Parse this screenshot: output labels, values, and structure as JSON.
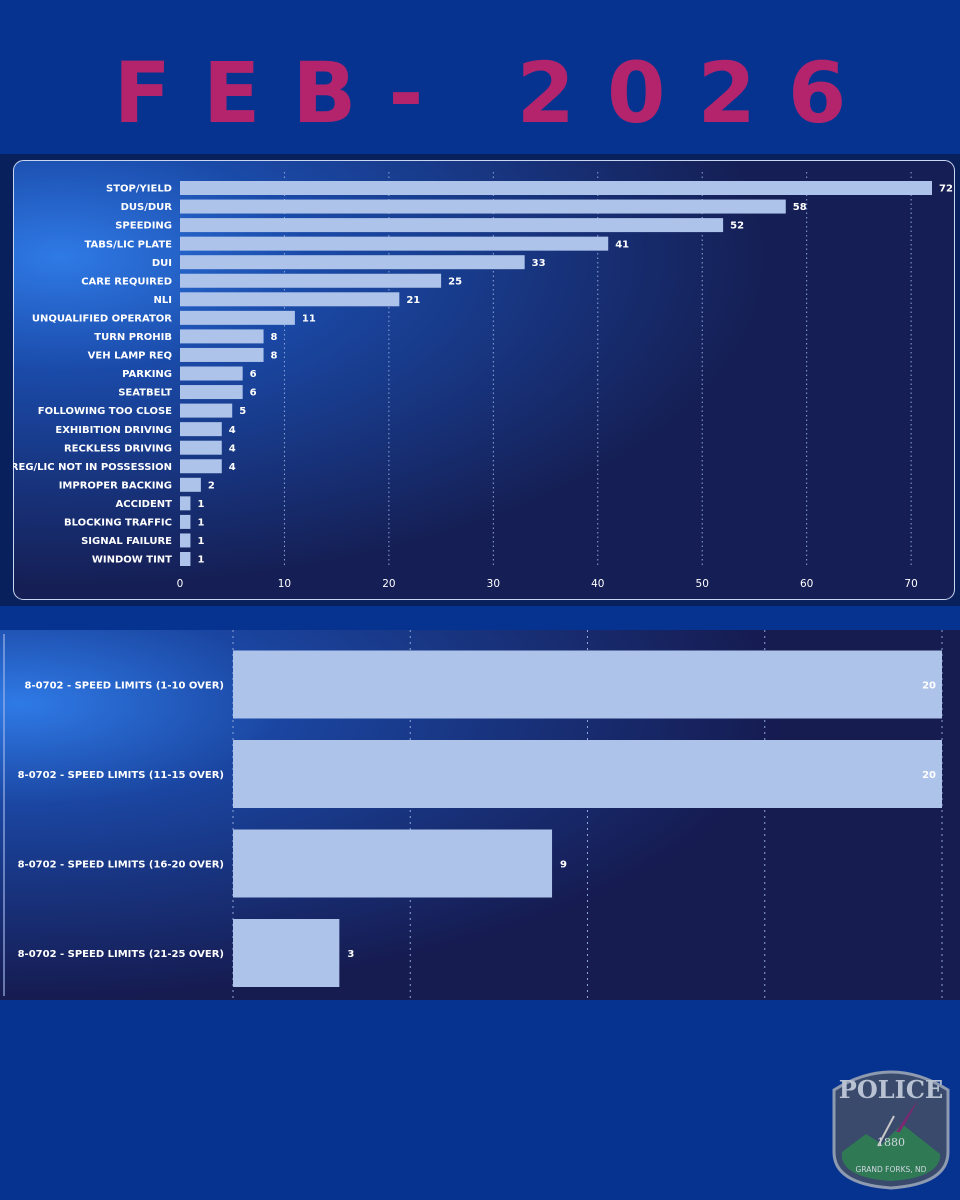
{
  "title": "FEB- 2026",
  "colors": {
    "background": "#073390",
    "title": "#b3246c",
    "bar": "#adc3ea",
    "text": "#ffffff"
  },
  "badge": {
    "text": "POLICE",
    "year": "1880",
    "location": "GRAND FORKS, ND"
  },
  "chart_data": [
    {
      "type": "bar",
      "orientation": "horizontal",
      "categories": [
        "STOP/YIELD",
        "DUS/DUR",
        "SPEEDING",
        "TABS/LIC PLATE",
        "DUI",
        "CARE REQUIRED",
        "NLI",
        "UNQUALIFIED OPERATOR",
        "TURN PROHIB",
        "VEH LAMP REQ",
        "PARKING",
        "SEATBELT",
        "FOLLOWING TOO CLOSE",
        "EXHIBITION DRIVING",
        "RECKLESS DRIVING",
        "REG/LIC NOT IN POSSESSION",
        "IMPROPER BACKING",
        "ACCIDENT",
        "BLOCKING TRAFFIC",
        "SIGNAL FAILURE",
        "WINDOW TINT"
      ],
      "values": [
        72,
        58,
        52,
        41,
        33,
        25,
        21,
        11,
        8,
        8,
        6,
        6,
        5,
        4,
        4,
        4,
        2,
        1,
        1,
        1,
        1
      ],
      "xlim": [
        0,
        73
      ],
      "xticks": [
        0,
        10,
        20,
        30,
        40,
        50,
        60,
        70
      ],
      "grid": true,
      "data_labels": true
    },
    {
      "type": "bar",
      "orientation": "horizontal",
      "categories": [
        "8-0702 - SPEED LIMITS (1-10 OVER)",
        "8-0702 - SPEED LIMITS (11-15 OVER)",
        "8-0702 - SPEED LIMITS (16-20 OVER)",
        "8-0702 - SPEED LIMITS (21-25 OVER)"
      ],
      "values": [
        20,
        20,
        9,
        3
      ],
      "xlim": [
        0,
        20
      ],
      "grid": true,
      "data_labels": true
    }
  ]
}
